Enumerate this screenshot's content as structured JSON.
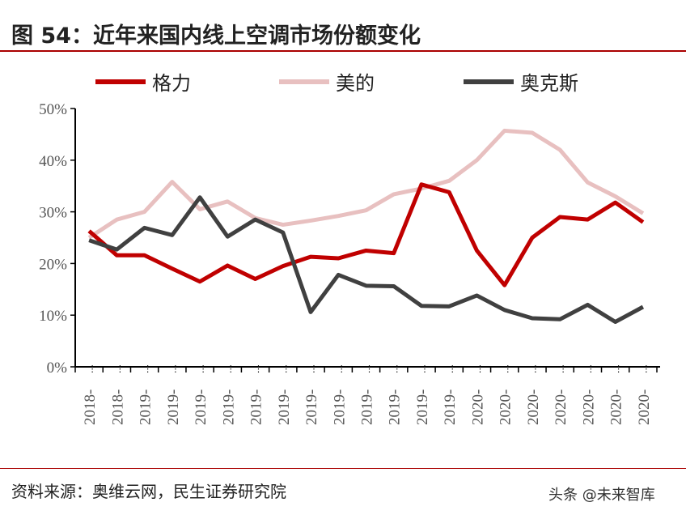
{
  "title": "图 54：近年来国内线上空调市场份额变化",
  "source": "资料来源：奥维云网，民生证券研究院",
  "watermark": "头条 @未来智库",
  "chart_data": {
    "type": "line",
    "title": "图 54：近年来国内线上空调市场份额变化",
    "categories": [
      "2018-",
      "2018-",
      "2019-",
      "2019-",
      "2019-",
      "2019-",
      "2019-",
      "2019-",
      "2019-",
      "2019-",
      "2019-",
      "2019-",
      "2019-",
      "2019-",
      "2020-",
      "2020-",
      "2020-",
      "2020-",
      "2020-",
      "2020-",
      "2020-"
    ],
    "ylim": [
      0,
      50
    ],
    "yticks": [
      "0%",
      "10%",
      "20%",
      "30%",
      "40%",
      "50%"
    ],
    "legend_position": "top",
    "series": [
      {
        "name": "格力",
        "color": "#c00000",
        "values": [
          26.3,
          21.6,
          21.6,
          19.0,
          16.5,
          19.6,
          17.0,
          19.5,
          21.3,
          21.0,
          22.5,
          22.0,
          35.3,
          33.8,
          22.5,
          15.8,
          25.0,
          29.0,
          28.5,
          31.8,
          28.0
        ]
      },
      {
        "name": "美的",
        "color": "#e8c0c0",
        "values": [
          25.0,
          28.5,
          30.0,
          35.8,
          30.5,
          32.0,
          28.8,
          27.5,
          28.3,
          29.2,
          30.3,
          33.4,
          34.5,
          36.0,
          40.0,
          45.7,
          45.3,
          42.0,
          35.7,
          33.0,
          29.7
        ]
      },
      {
        "name": "奥克斯",
        "color": "#404040",
        "values": [
          24.5,
          22.7,
          26.9,
          25.5,
          32.8,
          25.2,
          28.5,
          26.0,
          10.6,
          17.8,
          15.7,
          15.6,
          11.8,
          11.7,
          13.8,
          11.0,
          9.4,
          9.2,
          12.0,
          8.7,
          11.6
        ]
      }
    ]
  }
}
